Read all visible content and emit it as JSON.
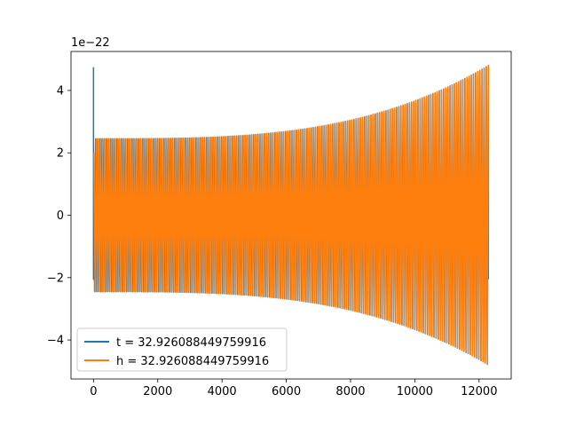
{
  "chart_data": {
    "type": "line",
    "title": "",
    "xlabel": "",
    "ylabel": "",
    "y_offset_text": "1e−22",
    "xlim": [
      -700,
      13000
    ],
    "ylim": [
      -5.25,
      5.25
    ],
    "x_ticks": [
      0,
      2000,
      4000,
      6000,
      8000,
      10000,
      12000
    ],
    "x_tick_labels": [
      "0",
      "2000",
      "4000",
      "6000",
      "8000",
      "10000",
      "12000"
    ],
    "y_ticks": [
      -4,
      -2,
      0,
      2,
      4
    ],
    "y_tick_labels": [
      "−4",
      "−2",
      "0",
      "2",
      "4"
    ],
    "grid": false,
    "legend_position": "lower-left",
    "waveform": {
      "x_start": 0,
      "x_end": 12290,
      "cycles": 185,
      "amplitude_start": 2.45,
      "amplitude_end": 4.8,
      "blue_spike_value": 4.75,
      "blue_end_value": -2.05
    },
    "series": [
      {
        "name": "t = 32.926088449759916",
        "color": "#1f77b4"
      },
      {
        "name": "h = 32.926088449759916",
        "color": "#ff7f0e"
      }
    ]
  }
}
